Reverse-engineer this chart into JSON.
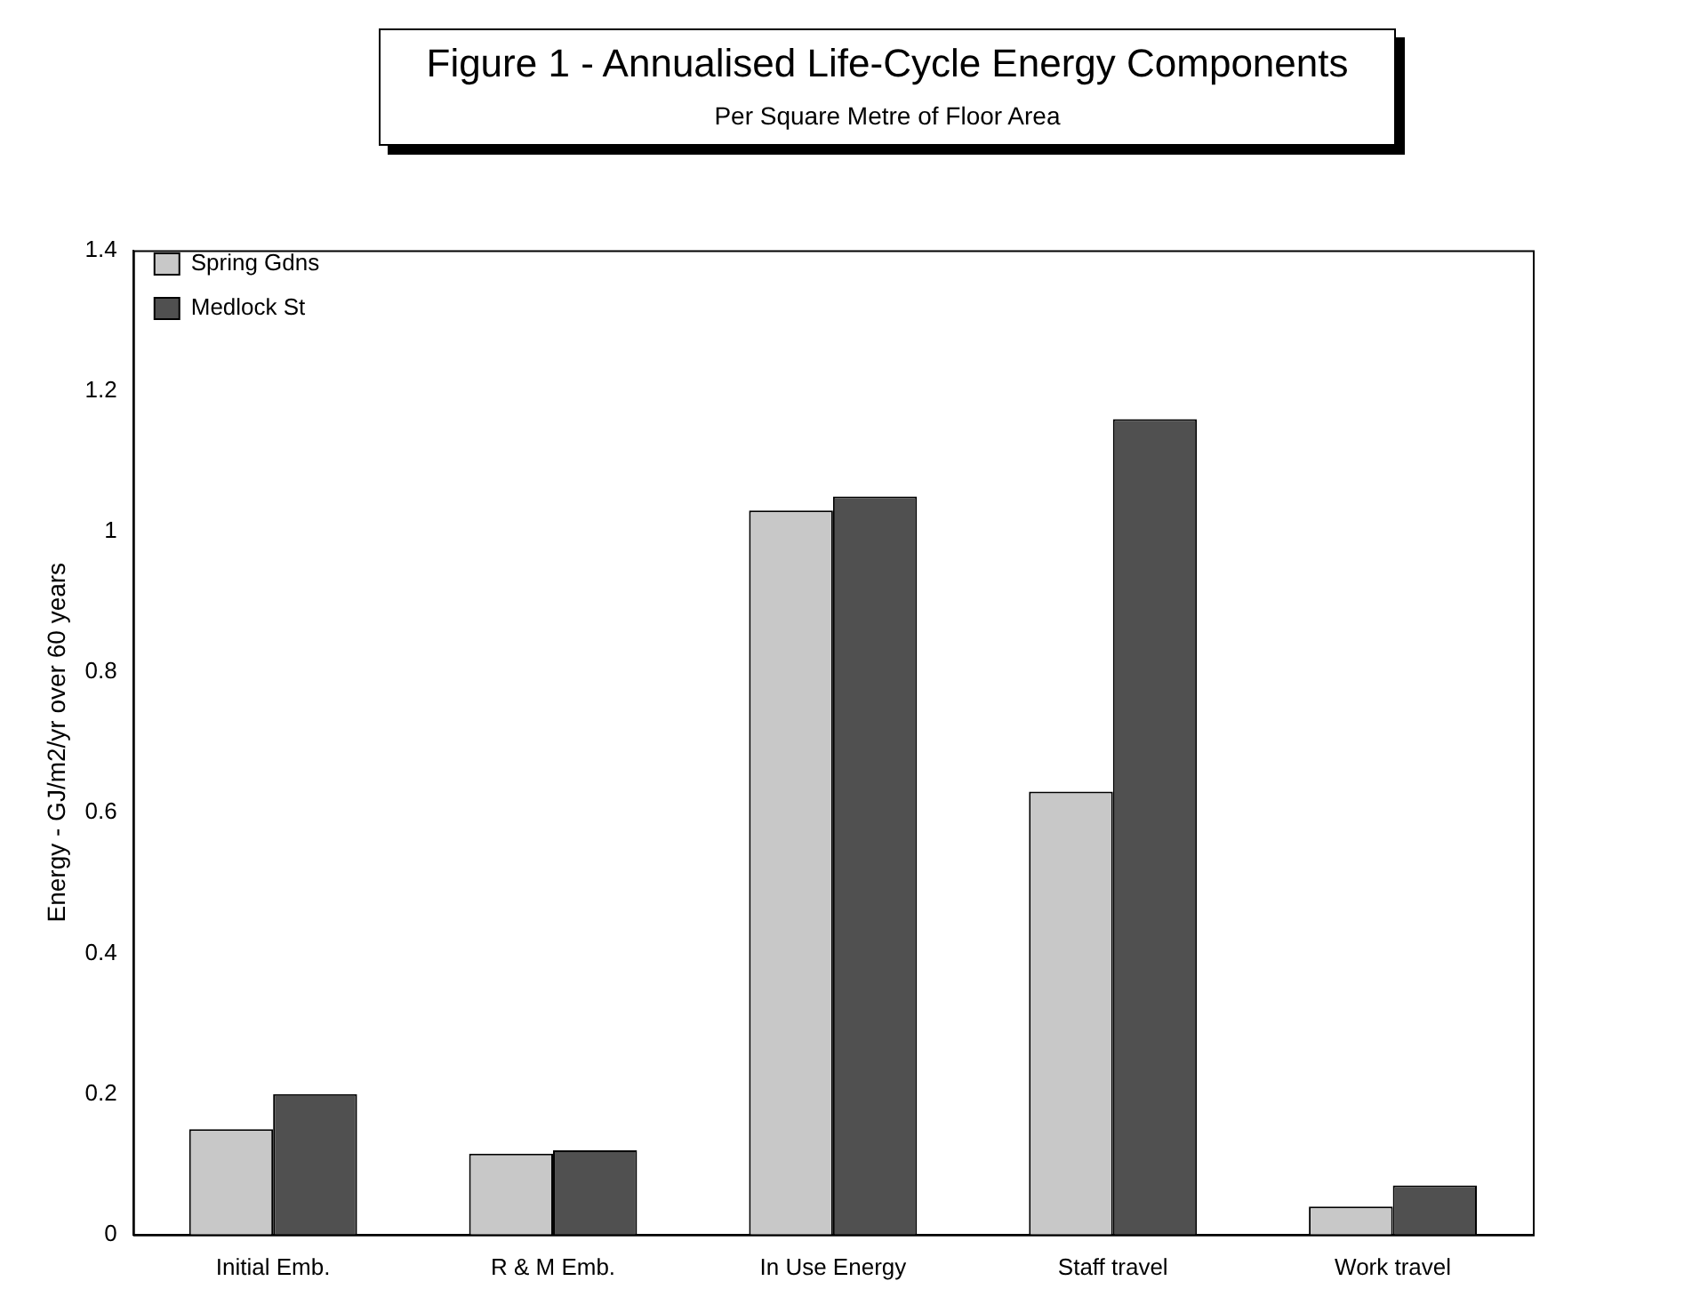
{
  "chart_data": {
    "type": "bar",
    "title": "Figure 1 - Annualised Life-Cycle Energy Components",
    "subtitle": "Per Square Metre of Floor Area",
    "ylabel": "Energy - GJ/m2/yr over 60 years",
    "categories": [
      "Initial Emb.",
      "R & M Emb.",
      "In Use Energy",
      "Staff travel",
      "Work travel"
    ],
    "series": [
      {
        "name": "Spring Gdns",
        "color": "#c8c8c8",
        "values": [
          0.15,
          0.115,
          1.03,
          0.63,
          0.04
        ]
      },
      {
        "name": "Medlock St",
        "color": "#505050",
        "values": [
          0.2,
          0.12,
          1.05,
          1.16,
          0.07
        ]
      }
    ],
    "ylim": [
      0,
      1.4
    ],
    "yticks": [
      0,
      0.2,
      0.4,
      0.6,
      0.8,
      1,
      1.2,
      1.4
    ],
    "grid": false,
    "legend": "top left"
  }
}
